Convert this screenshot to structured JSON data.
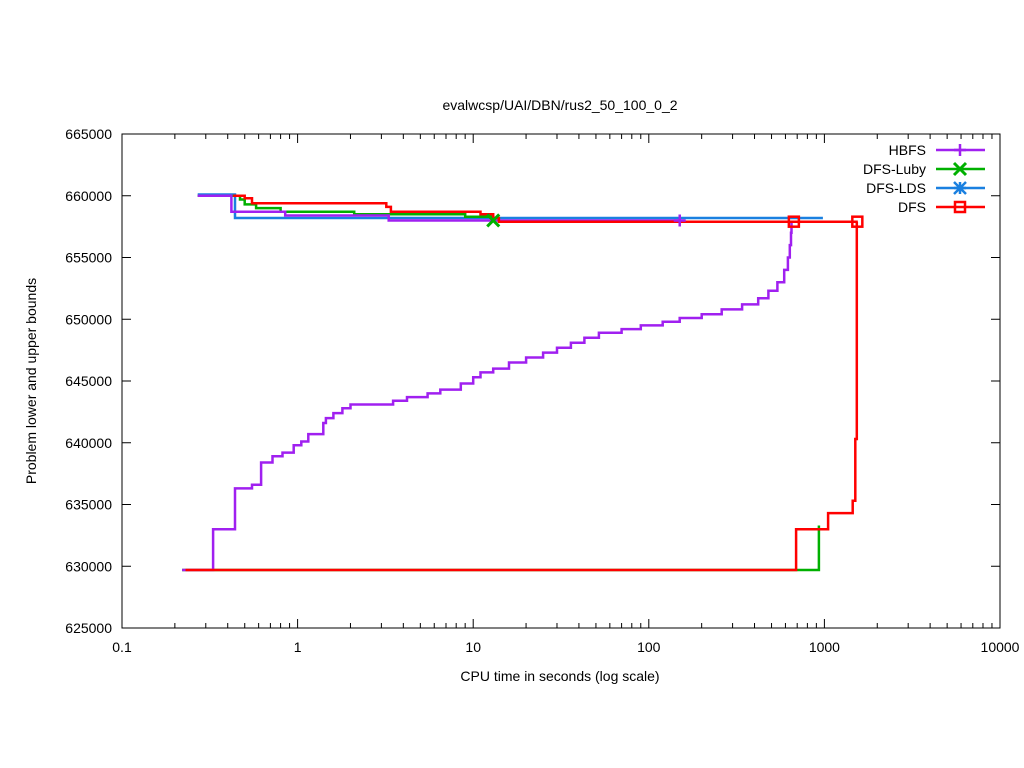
{
  "colors": {
    "HBFS": "#a020f0",
    "DFS-Luby": "#00b000",
    "DFS-LDS": "#1a80e0",
    "DFS": "#ff0000"
  },
  "chart_data": {
    "type": "line",
    "title": "evalwcsp/UAI/DBN/rus2_50_100_0_2",
    "xlabel": "CPU time in seconds (log scale)",
    "ylabel": "Problem lower and upper bounds",
    "xscale": "log",
    "xlim": [
      0.1,
      10000
    ],
    "ylim": [
      625000,
      665000
    ],
    "xticks": [
      0.1,
      1,
      10,
      100,
      1000,
      10000
    ],
    "xtick_labels": [
      "0.1",
      "1",
      "10",
      "100",
      "1000",
      "10000"
    ],
    "yticks": [
      625000,
      630000,
      635000,
      640000,
      645000,
      650000,
      655000,
      660000,
      665000
    ],
    "ytick_labels": [
      "625000",
      "630000",
      "635000",
      "640000",
      "645000",
      "650000",
      "655000",
      "660000",
      "665000"
    ],
    "grid": false,
    "legend_position": "top-right",
    "series": [
      {
        "name": "HBFS",
        "marker": "plus",
        "upper": [
          [
            0.27,
            660000
          ],
          [
            0.42,
            660000
          ],
          [
            0.42,
            658700
          ],
          [
            0.85,
            658700
          ],
          [
            0.85,
            658400
          ],
          [
            3.3,
            658400
          ],
          [
            3.3,
            658000
          ],
          [
            150,
            658000
          ],
          [
            150,
            657900
          ],
          [
            650,
            657900
          ]
        ],
        "lower": [
          [
            0.22,
            629700
          ],
          [
            0.33,
            629700
          ],
          [
            0.33,
            633000
          ],
          [
            0.44,
            633000
          ],
          [
            0.44,
            636300
          ],
          [
            0.55,
            636300
          ],
          [
            0.55,
            636600
          ],
          [
            0.62,
            636600
          ],
          [
            0.62,
            638400
          ],
          [
            0.72,
            638400
          ],
          [
            0.72,
            638900
          ],
          [
            0.82,
            638900
          ],
          [
            0.82,
            639200
          ],
          [
            0.95,
            639200
          ],
          [
            0.95,
            639800
          ],
          [
            1.05,
            639800
          ],
          [
            1.05,
            640100
          ],
          [
            1.15,
            640100
          ],
          [
            1.15,
            640700
          ],
          [
            1.4,
            640700
          ],
          [
            1.4,
            641600
          ],
          [
            1.45,
            641600
          ],
          [
            1.45,
            642000
          ],
          [
            1.6,
            642000
          ],
          [
            1.6,
            642400
          ],
          [
            1.8,
            642400
          ],
          [
            1.8,
            642800
          ],
          [
            2.0,
            642800
          ],
          [
            2.0,
            643100
          ],
          [
            3.5,
            643100
          ],
          [
            3.5,
            643400
          ],
          [
            4.2,
            643400
          ],
          [
            4.2,
            643700
          ],
          [
            5.5,
            643700
          ],
          [
            5.5,
            644000
          ],
          [
            6.5,
            644000
          ],
          [
            6.5,
            644300
          ],
          [
            8.5,
            644300
          ],
          [
            8.5,
            644800
          ],
          [
            10,
            644800
          ],
          [
            10,
            645300
          ],
          [
            11,
            645300
          ],
          [
            11,
            645700
          ],
          [
            13,
            645700
          ],
          [
            13,
            646000
          ],
          [
            16,
            646000
          ],
          [
            16,
            646500
          ],
          [
            20,
            646500
          ],
          [
            20,
            646900
          ],
          [
            25,
            646900
          ],
          [
            25,
            647300
          ],
          [
            30,
            647300
          ],
          [
            30,
            647700
          ],
          [
            36,
            647700
          ],
          [
            36,
            648100
          ],
          [
            43,
            648100
          ],
          [
            43,
            648500
          ],
          [
            52,
            648500
          ],
          [
            52,
            648900
          ],
          [
            70,
            648900
          ],
          [
            70,
            649200
          ],
          [
            90,
            649200
          ],
          [
            90,
            649500
          ],
          [
            120,
            649500
          ],
          [
            120,
            649800
          ],
          [
            150,
            649800
          ],
          [
            150,
            650100
          ],
          [
            200,
            650100
          ],
          [
            200,
            650400
          ],
          [
            260,
            650400
          ],
          [
            260,
            650800
          ],
          [
            340,
            650800
          ],
          [
            340,
            651200
          ],
          [
            420,
            651200
          ],
          [
            420,
            651700
          ],
          [
            480,
            651700
          ],
          [
            480,
            652300
          ],
          [
            540,
            652300
          ],
          [
            540,
            653000
          ],
          [
            590,
            653000
          ],
          [
            590,
            654000
          ],
          [
            620,
            654000
          ],
          [
            620,
            655000
          ],
          [
            635,
            655000
          ],
          [
            635,
            656000
          ],
          [
            645,
            656000
          ],
          [
            645,
            657000
          ],
          [
            650,
            657000
          ],
          [
            650,
            657900
          ]
        ]
      },
      {
        "name": "DFS-Luby",
        "marker": "x",
        "upper": [
          [
            0.27,
            660000
          ],
          [
            0.47,
            660000
          ],
          [
            0.47,
            659700
          ],
          [
            0.5,
            659700
          ],
          [
            0.5,
            659300
          ],
          [
            0.58,
            659300
          ],
          [
            0.58,
            659000
          ],
          [
            0.8,
            659000
          ],
          [
            0.8,
            658700
          ],
          [
            2.1,
            658700
          ],
          [
            2.1,
            658500
          ],
          [
            9,
            658500
          ],
          [
            9,
            658300
          ],
          [
            13,
            658300
          ],
          [
            13,
            658000
          ]
        ],
        "lower": [
          [
            0.22,
            629700
          ],
          [
            930,
            629700
          ],
          [
            930,
            633300
          ]
        ]
      },
      {
        "name": "DFS-LDS",
        "marker": "asterisk",
        "upper": [
          [
            0.27,
            660100
          ],
          [
            0.44,
            660100
          ],
          [
            0.44,
            658200
          ],
          [
            980,
            658200
          ]
        ],
        "lower": []
      },
      {
        "name": "DFS",
        "marker": "square",
        "upper": [
          [
            0.43,
            660000
          ],
          [
            0.5,
            660000
          ],
          [
            0.5,
            659800
          ],
          [
            0.55,
            659800
          ],
          [
            0.55,
            659400
          ],
          [
            3.2,
            659400
          ],
          [
            3.2,
            659100
          ],
          [
            3.4,
            659100
          ],
          [
            3.4,
            658700
          ],
          [
            11,
            658700
          ],
          [
            11,
            658500
          ],
          [
            13,
            658500
          ],
          [
            13,
            658200
          ],
          [
            14,
            658200
          ],
          [
            14,
            657900
          ],
          [
            670,
            657900
          ],
          [
            670,
            657900
          ],
          [
            1550,
            657900
          ]
        ],
        "lower": [
          [
            0.23,
            629700
          ],
          [
            690,
            629700
          ],
          [
            690,
            633000
          ],
          [
            1050,
            633000
          ],
          [
            1050,
            634300
          ],
          [
            1450,
            634300
          ],
          [
            1450,
            635300
          ],
          [
            1500,
            635300
          ],
          [
            1500,
            640300
          ],
          [
            1530,
            640300
          ],
          [
            1530,
            657900
          ]
        ]
      }
    ],
    "markers": [
      {
        "series": "HBFS",
        "x": 150,
        "y": 658000
      },
      {
        "series": "DFS-Luby",
        "x": 13,
        "y": 658000
      },
      {
        "series": "DFS",
        "x": 670,
        "y": 657900
      },
      {
        "series": "DFS",
        "x": 1540,
        "y": 657900
      }
    ]
  }
}
